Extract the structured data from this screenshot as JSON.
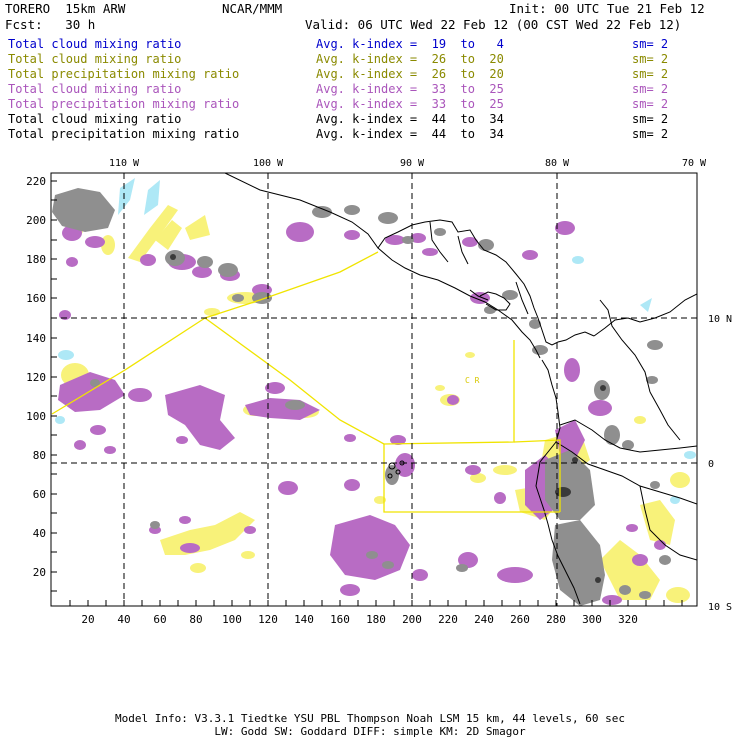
{
  "header": {
    "model": "TORERO  15km ARW",
    "org": "NCAR/MMM",
    "init": "Init: 00 UTC Tue 21 Feb 12",
    "fcst": "Fcst:   30 h",
    "valid": "Valid: 06 UTC Wed 22 Feb 12 (00 CST Wed 22 Feb 12)"
  },
  "legend": [
    {
      "field": "Total cloud mixing ratio",
      "index": "Avg. k-index =  19  to   4",
      "sm": "sm= 2",
      "color": "#0000cc"
    },
    {
      "field": "Total cloud mixing ratio",
      "index": "Avg. k-index =  26  to  20",
      "sm": "sm= 2",
      "color": "#8a8a00"
    },
    {
      "field": "Total precipitation mixing ratio",
      "index": "Avg. k-index =  26  to  20",
      "sm": "sm= 2",
      "color": "#8a8a00"
    },
    {
      "field": "Total cloud mixing ratio",
      "index": "Avg. k-index =  33  to  25",
      "sm": "sm= 2",
      "color": "#aa55bb"
    },
    {
      "field": "Total precipitation mixing ratio",
      "index": "Avg. k-index =  33  to  25",
      "sm": "sm= 2",
      "color": "#aa55bb"
    },
    {
      "field": "Total cloud mixing ratio",
      "index": "Avg. k-index =  44  to  34",
      "sm": "sm= 2",
      "color": "#000000"
    },
    {
      "field": "Total precipitation mixing ratio",
      "index": "Avg. k-index =  44  to  34",
      "sm": "sm= 2",
      "color": "#000000"
    }
  ],
  "axes": {
    "left_ticks": [
      "220",
      "200",
      "180",
      "160",
      "140",
      "120",
      "100",
      "80",
      "60",
      "40",
      "20"
    ],
    "bottom_ticks": [
      "20",
      "40",
      "60",
      "80",
      "100",
      "120",
      "140",
      "160",
      "180",
      "200",
      "220",
      "240",
      "260",
      "280",
      "300",
      "320"
    ],
    "top_lon_labels": [
      "110 W",
      "100 W",
      "90 W",
      "80 W",
      "70 W"
    ],
    "right_lat_labels": [
      "10 N",
      "0",
      "10 S"
    ]
  },
  "map_labels": {
    "cr": "C  R"
  },
  "colors": {
    "k_low": "#aee8f6",
    "k_mid": "#f8f27a",
    "k_high": "#b86cc4",
    "k_top": "#8f8f8f",
    "coast": "#000000",
    "box": "#f0e400"
  },
  "footer": {
    "line1": "Model Info: V3.3.1   Tiedtke YSU PBL  Thompson    Noah LSM  15 km,   44 levels,   60 sec",
    "line2": "LW: Godd SW: Goddard DIFF: simple KM: 2D Smagor"
  }
}
